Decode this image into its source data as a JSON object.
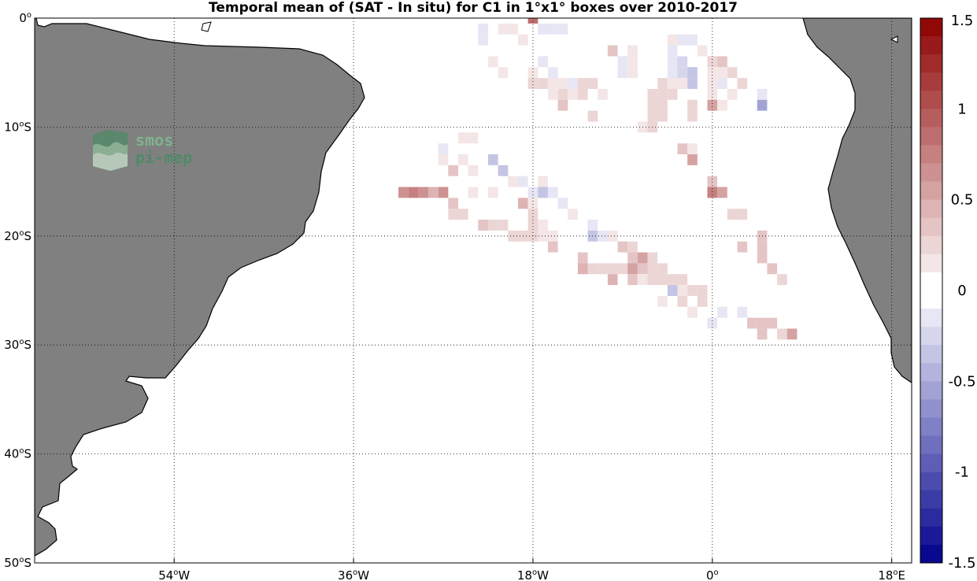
{
  "title": "Temporal mean of (SAT - In situ) for C1 in 1°x1° boxes over 2010-2017",
  "logo": {
    "line1": "smos",
    "line2": "pi-mep"
  },
  "map": {
    "lon_range": [
      -68,
      20
    ],
    "lat_range": [
      -50,
      0
    ],
    "land_color": "#808080",
    "ocean_color": "#ffffff",
    "grid": "dotted",
    "lat_ticks": [
      {
        "value": 0,
        "deg": "0",
        "hemi": ""
      },
      {
        "value": -10,
        "deg": "10",
        "hemi": "S"
      },
      {
        "value": -20,
        "deg": "20",
        "hemi": "S"
      },
      {
        "value": -30,
        "deg": "30",
        "hemi": "S"
      },
      {
        "value": -40,
        "deg": "40",
        "hemi": "S"
      },
      {
        "value": -50,
        "deg": "50",
        "hemi": "S"
      }
    ],
    "lon_ticks": [
      {
        "value": -54,
        "deg": "54",
        "hemi": "W"
      },
      {
        "value": -36,
        "deg": "36",
        "hemi": "W"
      },
      {
        "value": -18,
        "deg": "18",
        "hemi": "W"
      },
      {
        "value": 0,
        "deg": "0",
        "hemi": ""
      },
      {
        "value": 18,
        "deg": "18",
        "hemi": "E"
      }
    ]
  },
  "colorbar": {
    "range": [
      -1.5,
      1.5
    ],
    "levels": 30,
    "ticks": [
      "1.5",
      "1",
      "0.5",
      "0",
      "-0.5",
      "-1",
      "-1.5"
    ],
    "tick_values": [
      1.5,
      1,
      0.5,
      0,
      -0.5,
      -1,
      -1.5
    ],
    "neg_color": "#00008c",
    "zero_color": "#ffffff",
    "pos_color": "#8c0000"
  },
  "chart_data": {
    "type": "heatmap",
    "title": "Temporal mean of (SAT - In situ) for C1 in 1°x1° boxes over 2010-2017",
    "xlabel": "",
    "ylabel": "",
    "x_unit": "degrees longitude",
    "y_unit": "degrees latitude",
    "xlim": [
      -68,
      20
    ],
    "ylim": [
      -50,
      0
    ],
    "value_range": [
      -1.5,
      1.5
    ],
    "cells": [
      [
        -18,
        0,
        0.9
      ],
      [
        -23,
        -1,
        -0.1
      ],
      [
        -21,
        -1,
        0.1
      ],
      [
        -20,
        -1,
        0.15
      ],
      [
        -17,
        -1,
        -0.1
      ],
      [
        -16,
        -1,
        -0.1
      ],
      [
        -15,
        -1,
        -0.1
      ],
      [
        -23,
        -2,
        -0.1
      ],
      [
        -19,
        -2,
        0.1
      ],
      [
        -4,
        -2,
        0.15
      ],
      [
        -3,
        -2,
        -0.1
      ],
      [
        -2,
        -2,
        -0.1
      ],
      [
        -10,
        -3,
        0.35
      ],
      [
        -8,
        -3,
        0.15
      ],
      [
        -4,
        -3,
        -0.15
      ],
      [
        -1,
        -3,
        0.1
      ],
      [
        -22,
        -4,
        0.1
      ],
      [
        -17,
        -4,
        -0.1
      ],
      [
        -9,
        -4,
        -0.1
      ],
      [
        -8,
        -4,
        0.1
      ],
      [
        -4,
        -4,
        -0.2
      ],
      [
        -3,
        -4,
        -0.25
      ],
      [
        0,
        -4,
        0.25
      ],
      [
        1,
        -4,
        0.3
      ],
      [
        -21,
        -5,
        0.15
      ],
      [
        -18,
        -5,
        0.15
      ],
      [
        -16,
        -5,
        -0.1
      ],
      [
        -9,
        -5,
        -0.1
      ],
      [
        -8,
        -5,
        0.15
      ],
      [
        -4,
        -5,
        -0.15
      ],
      [
        -3,
        -5,
        -0.25
      ],
      [
        -2,
        -5,
        -0.35
      ],
      [
        0,
        -5,
        0.15
      ],
      [
        1,
        -5,
        0.15
      ],
      [
        2,
        -5,
        0.25
      ],
      [
        -18,
        -6,
        0.2
      ],
      [
        -17,
        -6,
        0.2
      ],
      [
        -16,
        -6,
        0.15
      ],
      [
        -15,
        -6,
        0.1
      ],
      [
        -14,
        -6,
        -0.15
      ],
      [
        -13,
        -6,
        0.2
      ],
      [
        -12,
        -6,
        0.2
      ],
      [
        -5,
        -6,
        0.2
      ],
      [
        -4,
        -6,
        0.15
      ],
      [
        -3,
        -6,
        0.1
      ],
      [
        -2,
        -6,
        -0.3
      ],
      [
        0,
        -6,
        0.15
      ],
      [
        1,
        -6,
        -0.2
      ],
      [
        3,
        -6,
        0.2
      ],
      [
        -16,
        -7,
        0.15
      ],
      [
        -15,
        -7,
        0.2
      ],
      [
        -14,
        -7,
        0.15
      ],
      [
        -13,
        -7,
        0.2
      ],
      [
        -11,
        -7,
        0.15
      ],
      [
        -6,
        -7,
        0.2
      ],
      [
        -5,
        -7,
        0.25
      ],
      [
        -4,
        -7,
        0.2
      ],
      [
        0,
        -7,
        0.1
      ],
      [
        2,
        -7,
        0.15
      ],
      [
        5,
        -7,
        -0.1
      ],
      [
        -15,
        -8,
        0.3
      ],
      [
        -6,
        -8,
        0.2
      ],
      [
        -5,
        -8,
        0.25
      ],
      [
        -2,
        -8,
        0.25
      ],
      [
        0,
        -8,
        0.5
      ],
      [
        1,
        -8,
        0.15
      ],
      [
        5,
        -8,
        -0.55
      ],
      [
        -12,
        -9,
        0.2
      ],
      [
        -6,
        -9,
        0.2
      ],
      [
        -5,
        -9,
        0.25
      ],
      [
        -2,
        -9,
        0.25
      ],
      [
        -7,
        -10,
        0.15
      ],
      [
        -6,
        -10,
        0.25
      ],
      [
        -25,
        -11,
        0.15
      ],
      [
        -24,
        -11,
        0.15
      ],
      [
        -27,
        -12,
        -0.1
      ],
      [
        -3,
        -12,
        0.3
      ],
      [
        -2,
        -12,
        0.15
      ],
      [
        -27,
        -13,
        0.1
      ],
      [
        -25,
        -13,
        0.15
      ],
      [
        -22,
        -13,
        -0.3
      ],
      [
        -2,
        -13,
        0.55
      ],
      [
        -26,
        -14,
        0.3
      ],
      [
        -24,
        -14,
        0.1
      ],
      [
        -21,
        -14,
        -0.3
      ],
      [
        -20,
        -15,
        0.15
      ],
      [
        -19,
        -15,
        -0.1
      ],
      [
        -17,
        -15,
        0.15
      ],
      [
        0,
        -15,
        0.3
      ],
      [
        -31,
        -16,
        0.65
      ],
      [
        -30,
        -16,
        0.75
      ],
      [
        -29,
        -16,
        0.65
      ],
      [
        -28,
        -16,
        0.4
      ],
      [
        -27,
        -16,
        0.65
      ],
      [
        -24,
        -16,
        0.1
      ],
      [
        -22,
        -16,
        0.15
      ],
      [
        -18,
        -16,
        -0.2
      ],
      [
        -17,
        -16,
        -0.3
      ],
      [
        -16,
        -16,
        -0.1
      ],
      [
        0,
        -16,
        0.75
      ],
      [
        1,
        -16,
        0.55
      ],
      [
        -26,
        -17,
        0.3
      ],
      [
        -19,
        -17,
        0.4
      ],
      [
        -18,
        -17,
        0.15
      ],
      [
        -15,
        -17,
        -0.15
      ],
      [
        -26,
        -18,
        0.2
      ],
      [
        -25,
        -18,
        0.2
      ],
      [
        -18,
        -18,
        0.2
      ],
      [
        -14,
        -18,
        0.1
      ],
      [
        2,
        -18,
        0.2
      ],
      [
        3,
        -18,
        0.2
      ],
      [
        -23,
        -19,
        0.3
      ],
      [
        -22,
        -19,
        0.2
      ],
      [
        -21,
        -19,
        0.2
      ],
      [
        -18,
        -19,
        0.2
      ],
      [
        -17,
        -19,
        0.15
      ],
      [
        -12,
        -19,
        -0.15
      ],
      [
        -20,
        -20,
        0.2
      ],
      [
        -19,
        -20,
        0.2
      ],
      [
        -18,
        -20,
        0.2
      ],
      [
        -17,
        -20,
        0.15
      ],
      [
        -16,
        -20,
        0.15
      ],
      [
        -12,
        -20,
        -0.35
      ],
      [
        -11,
        -20,
        -0.2
      ],
      [
        -10,
        -20,
        0.1
      ],
      [
        5,
        -20,
        0.35
      ],
      [
        -16,
        -21,
        0.35
      ],
      [
        -9,
        -21,
        0.3
      ],
      [
        -8,
        -21,
        0.2
      ],
      [
        3,
        -21,
        0.3
      ],
      [
        5,
        -21,
        0.35
      ],
      [
        -13,
        -22,
        0.3
      ],
      [
        -8,
        -22,
        0.3
      ],
      [
        -7,
        -22,
        0.5
      ],
      [
        -6,
        -22,
        0.2
      ],
      [
        5,
        -22,
        0.35
      ],
      [
        -13,
        -23,
        0.4
      ],
      [
        -12,
        -23,
        0.2
      ],
      [
        -11,
        -23,
        0.2
      ],
      [
        -10,
        -23,
        0.2
      ],
      [
        -9,
        -23,
        0.2
      ],
      [
        -8,
        -23,
        0.5
      ],
      [
        -7,
        -23,
        0.3
      ],
      [
        -6,
        -23,
        0.2
      ],
      [
        -5,
        -23,
        0.2
      ],
      [
        6,
        -23,
        0.3
      ],
      [
        -10,
        -24,
        0.4
      ],
      [
        -8,
        -24,
        0.3
      ],
      [
        -7,
        -24,
        0.15
      ],
      [
        -6,
        -24,
        0.2
      ],
      [
        -5,
        -24,
        0.2
      ],
      [
        -4,
        -24,
        0.25
      ],
      [
        -3,
        -24,
        0.25
      ],
      [
        7,
        -24,
        0.25
      ],
      [
        -4,
        -25,
        -0.3
      ],
      [
        -3,
        -25,
        0.15
      ],
      [
        -2,
        -25,
        0.2
      ],
      [
        -1,
        -25,
        0.2
      ],
      [
        -5,
        -26,
        0.15
      ],
      [
        -3,
        -26,
        0.2
      ],
      [
        -1,
        -26,
        0.2
      ],
      [
        -2,
        -27,
        0.1
      ],
      [
        -2,
        -27,
        0.1
      ],
      [
        1,
        -27,
        -0.1
      ],
      [
        3,
        -27,
        -0.1
      ],
      [
        0,
        -28,
        -0.15
      ],
      [
        4,
        -28,
        0.3
      ],
      [
        5,
        -28,
        0.35
      ],
      [
        6,
        -28,
        0.3
      ],
      [
        5,
        -29,
        0.35
      ],
      [
        7,
        -29,
        0.2
      ],
      [
        8,
        -29,
        0.55
      ]
    ]
  }
}
